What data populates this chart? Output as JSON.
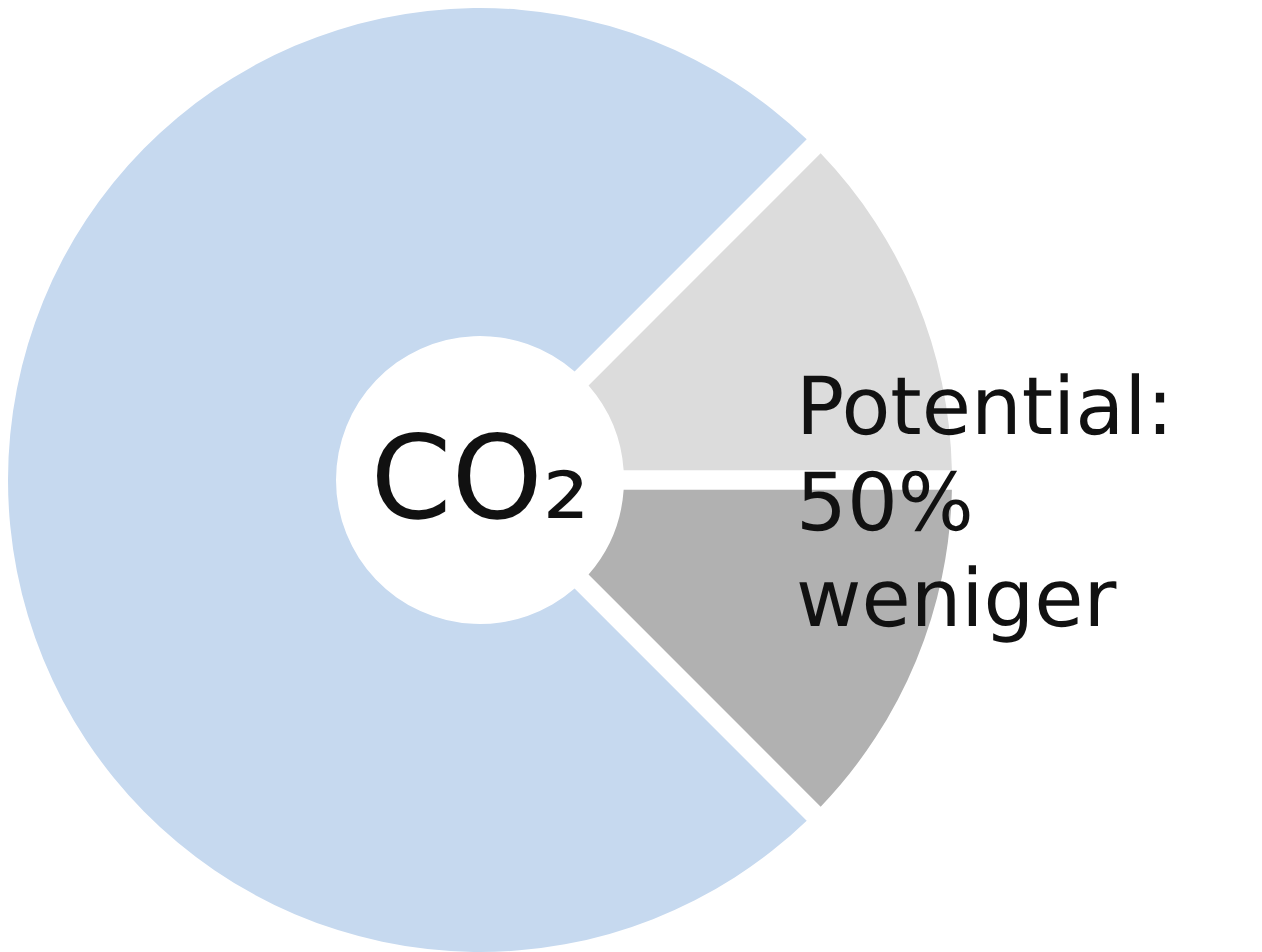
{
  "chart_data": {
    "type": "donut",
    "categories": [
      null,
      null,
      null
    ],
    "values": [
      12.5,
      12.5,
      75
    ],
    "colors": [
      "#dcdcdc",
      "#b1b1b1",
      "#c6d9ef"
    ],
    "annotations": [
      "CO₂",
      "Potential: 50% weniger"
    ]
  }
}
